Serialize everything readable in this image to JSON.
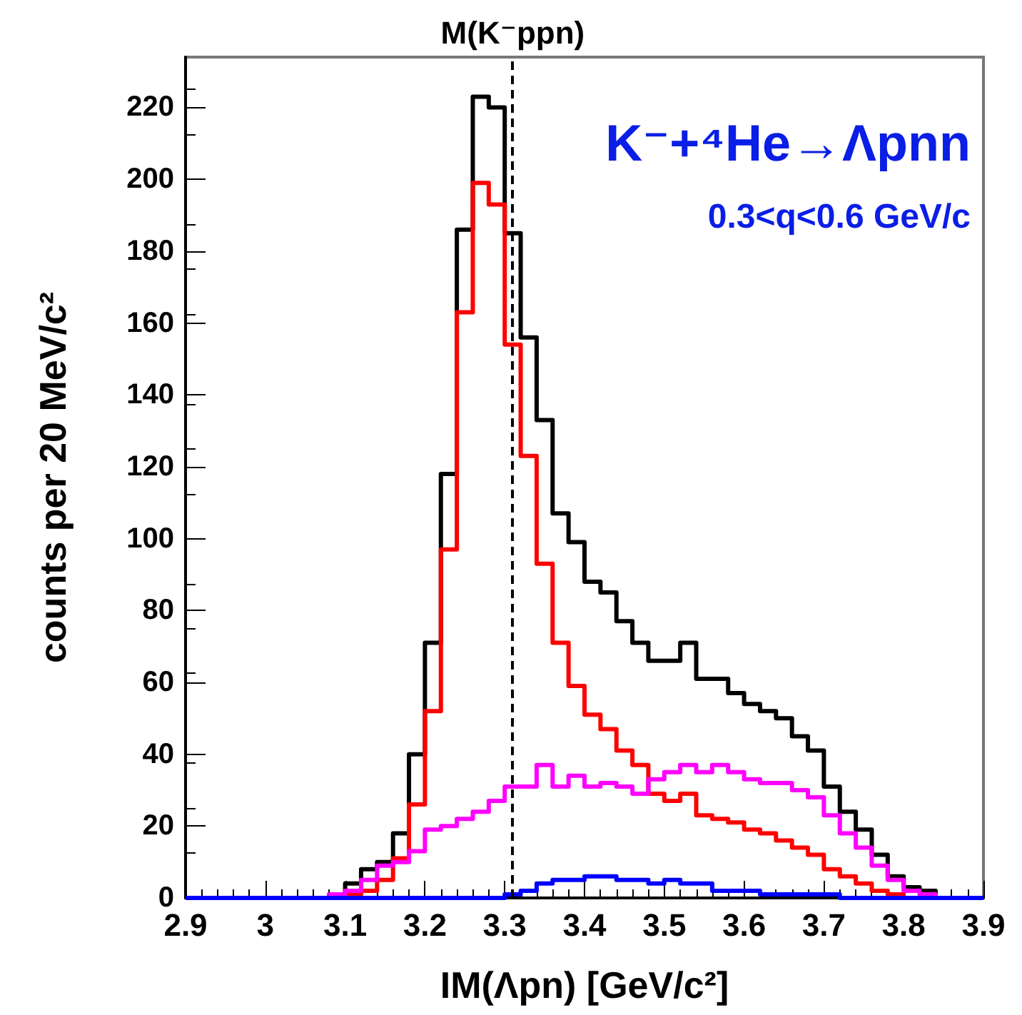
{
  "chart_data": {
    "type": "histogram",
    "xlabel": "IM(Λpn) [GeV/c²]",
    "ylabel": "counts per 20 MeV/c²",
    "annotations": [
      "K⁻+⁴He→Λpnn",
      "0.3<q<0.6 GeV/c"
    ],
    "bins": [
      2.9,
      2.92,
      2.94,
      2.96,
      2.98,
      3.0,
      3.02,
      3.04,
      3.06,
      3.08,
      3.1,
      3.12,
      3.14,
      3.16,
      3.18,
      3.2,
      3.22,
      3.24,
      3.26,
      3.28,
      3.3,
      3.32,
      3.34,
      3.36,
      3.38,
      3.4,
      3.42,
      3.44,
      3.46,
      3.48,
      3.5,
      3.52,
      3.54,
      3.56,
      3.58,
      3.6,
      3.62,
      3.64,
      3.66,
      3.68,
      3.7,
      3.72,
      3.74,
      3.76,
      3.78,
      3.8,
      3.82,
      3.84,
      3.86,
      3.88,
      3.9
    ],
    "series": [
      {
        "color": "#000000",
        "values": [
          0,
          0,
          0,
          0,
          0,
          0,
          0,
          0,
          0,
          1,
          4,
          8,
          10,
          18,
          40,
          71,
          118,
          186,
          223,
          220,
          185,
          156,
          133,
          107,
          99,
          88,
          85,
          77,
          71,
          66,
          66,
          71,
          61,
          61,
          57,
          54,
          52,
          50,
          45,
          41,
          31,
          24,
          19,
          12,
          6,
          3,
          2,
          0,
          0,
          0
        ]
      },
      {
        "color": "#ff0000",
        "values": [
          0,
          0,
          0,
          0,
          0,
          0,
          0,
          0,
          0,
          0,
          1,
          2,
          5,
          11,
          26,
          52,
          97,
          163,
          199,
          193,
          154,
          123,
          93,
          71,
          59,
          51,
          47,
          41,
          37,
          29,
          27,
          29,
          23,
          22,
          21,
          19,
          18,
          16,
          14,
          12,
          8,
          6,
          4,
          2,
          1,
          0,
          0,
          0,
          0,
          0
        ]
      },
      {
        "color": "#ff00ff",
        "values": [
          0,
          0,
          0,
          0,
          0,
          0,
          0,
          0,
          0,
          1,
          2,
          5,
          9,
          10,
          13,
          19,
          20,
          22,
          24,
          27,
          31,
          31,
          37,
          31,
          34,
          31,
          32,
          31,
          29,
          33,
          35,
          37,
          35,
          37,
          35,
          33,
          32,
          32,
          30,
          28,
          23,
          18,
          14,
          9,
          5,
          2,
          1,
          0,
          0,
          0
        ]
      },
      {
        "color": "#0000ff",
        "values": [
          0,
          0,
          0,
          0,
          0,
          0,
          0,
          0,
          0,
          0,
          0,
          0,
          0,
          0,
          0,
          0,
          0,
          0,
          0,
          0,
          1,
          2,
          4,
          5,
          5,
          6,
          6,
          5,
          5,
          4,
          5,
          4,
          4,
          2,
          2,
          2,
          1,
          1,
          1,
          1,
          1,
          0,
          0,
          0,
          0,
          0,
          0,
          0,
          0,
          0
        ]
      }
    ],
    "xlim": [
      2.9,
      3.9
    ],
    "xticks": [
      2.9,
      3,
      3.1,
      3.2,
      3.3,
      3.4,
      3.5,
      3.6,
      3.7,
      3.8,
      3.9
    ],
    "ylim": [
      0,
      234
    ],
    "yticks": [
      0,
      20,
      40,
      60,
      80,
      100,
      120,
      140,
      160,
      180,
      200,
      220
    ],
    "ref_lines": [
      {
        "axis": "x",
        "value": 3.31,
        "label": "M(K⁻ppn)",
        "color": "#000000",
        "line_style": "dashed"
      }
    ],
    "grid": false
  }
}
